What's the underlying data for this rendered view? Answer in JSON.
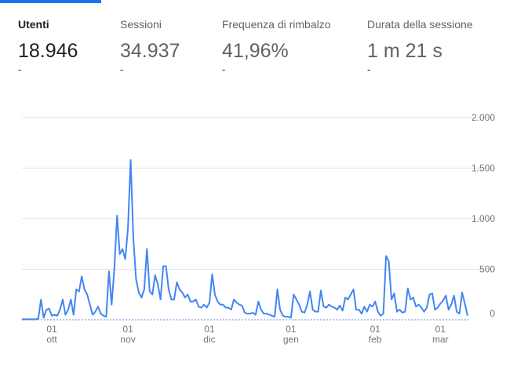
{
  "tabs": [
    {
      "label": "Utenti",
      "value": "18.946",
      "change": "-"
    },
    {
      "label": "Sessioni",
      "value": "34.937",
      "change": "-"
    },
    {
      "label": "Frequenza di rimbalzo",
      "value": "41,96%",
      "change": "-"
    },
    {
      "label": "Durata della sessione",
      "value": "1 m 21 s",
      "change": "-"
    }
  ],
  "chart_data": {
    "type": "line",
    "color": "#4285f4",
    "grid": true,
    "ylim": [
      0,
      2000
    ],
    "yticks": [
      {
        "value": 0,
        "label": "0"
      },
      {
        "value": 500,
        "label": "500"
      },
      {
        "value": 1000,
        "label": "1.000"
      },
      {
        "value": 1500,
        "label": "1.500"
      },
      {
        "value": 2000,
        "label": "2.000"
      }
    ],
    "categories": [
      null,
      null,
      null,
      null,
      null,
      null,
      null,
      null,
      null,
      null,
      null,
      [
        "01",
        "ott"
      ],
      null,
      null,
      null,
      null,
      null,
      null,
      null,
      null,
      null,
      null,
      null,
      null,
      null,
      null,
      null,
      null,
      null,
      null,
      null,
      null,
      null,
      null,
      null,
      null,
      null,
      null,
      null,
      [
        "01",
        "nov"
      ],
      null,
      null,
      null,
      null,
      null,
      null,
      null,
      null,
      null,
      null,
      null,
      null,
      null,
      null,
      null,
      null,
      null,
      null,
      null,
      null,
      null,
      null,
      null,
      null,
      null,
      null,
      null,
      null,
      null,
      [
        "01",
        "dic"
      ],
      null,
      null,
      null,
      null,
      null,
      null,
      null,
      null,
      null,
      null,
      null,
      null,
      null,
      null,
      null,
      null,
      null,
      null,
      null,
      null,
      null,
      null,
      null,
      null,
      null,
      null,
      null,
      null,
      null,
      [
        "01",
        "gen"
      ],
      null,
      null,
      null,
      null,
      null,
      null,
      null,
      null,
      null,
      null,
      null,
      null,
      null,
      null,
      null,
      null,
      null,
      null,
      null,
      null,
      null,
      null,
      null,
      null,
      null,
      null,
      null,
      null,
      null,
      null,
      [
        "01",
        "feb"
      ],
      null,
      null,
      null,
      null,
      null,
      null,
      null,
      null,
      null,
      null,
      null,
      null,
      null,
      null,
      null,
      null,
      null,
      null,
      null,
      null,
      null,
      null,
      null,
      [
        "01",
        "mar"
      ],
      null,
      null,
      null,
      null,
      null,
      null,
      null,
      null,
      null,
      null
    ],
    "values": [
      5,
      5,
      5,
      5,
      5,
      5,
      10,
      200,
      20,
      100,
      110,
      40,
      50,
      40,
      100,
      200,
      50,
      100,
      200,
      50,
      300,
      280,
      430,
      300,
      250,
      150,
      50,
      80,
      130,
      60,
      40,
      30,
      480,
      150,
      500,
      1030,
      650,
      700,
      600,
      900,
      1580,
      800,
      400,
      270,
      220,
      300,
      700,
      280,
      250,
      440,
      350,
      200,
      530,
      530,
      300,
      200,
      200,
      370,
      300,
      270,
      220,
      250,
      180,
      180,
      200,
      130,
      120,
      150,
      120,
      170,
      450,
      250,
      180,
      150,
      150,
      120,
      120,
      100,
      200,
      170,
      150,
      140,
      70,
      60,
      60,
      70,
      50,
      180,
      100,
      60,
      60,
      50,
      40,
      30,
      300,
      100,
      40,
      30,
      30,
      20,
      250,
      200,
      150,
      80,
      70,
      150,
      280,
      100,
      80,
      80,
      290,
      130,
      120,
      150,
      130,
      120,
      100,
      140,
      90,
      220,
      200,
      250,
      300,
      100,
      100,
      60,
      130,
      80,
      150,
      130,
      180,
      80,
      40,
      60,
      630,
      580,
      200,
      260,
      80,
      100,
      70,
      80,
      310,
      200,
      220,
      130,
      150,
      120,
      80,
      120,
      250,
      260,
      100,
      120,
      160,
      190,
      240,
      100,
      150,
      240,
      80,
      60,
      270,
      160,
      40
    ]
  }
}
